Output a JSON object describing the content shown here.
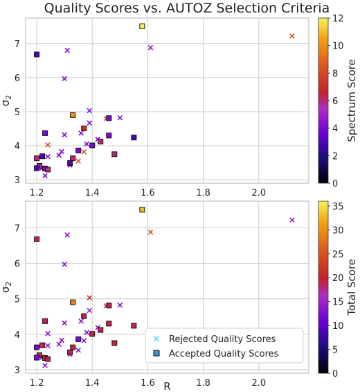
{
  "title": "Quality Scores vs. AUTOZ Selection Criteria",
  "xlabel": "R",
  "legend": {
    "rejected": "Rejected Quality Scores",
    "accepted": "Accepted Quality Scores"
  },
  "chart_data": [
    {
      "type": "scatter",
      "panel": "top",
      "title": "Quality Scores vs. AUTOZ Selection Criteria",
      "xlabel": "",
      "ylabel": "σ2",
      "xlim": [
        1.16,
        2.18
      ],
      "ylim": [
        2.9,
        7.75
      ],
      "xticks": [
        "1.2",
        "1.4",
        "1.6",
        "1.8",
        "2.0"
      ],
      "yticks": [
        "3",
        "4",
        "5",
        "6",
        "7"
      ],
      "grid": true,
      "colorbar": {
        "label": "Spectrum Score",
        "min": 0,
        "max": 12,
        "ticks": [
          "0",
          "2",
          "4",
          "6",
          "8",
          "10",
          "12"
        ]
      },
      "series": [
        {
          "name": "Rejected Quality Scores",
          "marker": "x",
          "points": [
            {
              "x": 2.12,
              "y": 7.22,
              "c": 8
            },
            {
              "x": 1.61,
              "y": 6.88,
              "c": 4
            },
            {
              "x": 1.31,
              "y": 6.8,
              "c": 4
            },
            {
              "x": 1.3,
              "y": 5.97,
              "c": 4
            },
            {
              "x": 1.39,
              "y": 5.03,
              "c": 4
            },
            {
              "x": 1.45,
              "y": 4.8,
              "c": 8
            },
            {
              "x": 1.5,
              "y": 4.82,
              "c": 4
            },
            {
              "x": 1.39,
              "y": 4.67,
              "c": 4
            },
            {
              "x": 1.3,
              "y": 4.32,
              "c": 4
            },
            {
              "x": 1.36,
              "y": 4.37,
              "c": 4
            },
            {
              "x": 1.42,
              "y": 4.19,
              "c": 4
            },
            {
              "x": 1.38,
              "y": 4.05,
              "c": 4
            },
            {
              "x": 1.24,
              "y": 4.02,
              "c": 8
            },
            {
              "x": 1.29,
              "y": 3.83,
              "c": 4
            },
            {
              "x": 1.37,
              "y": 3.82,
              "c": 8
            },
            {
              "x": 1.28,
              "y": 3.72,
              "c": 4
            },
            {
              "x": 1.24,
              "y": 3.68,
              "c": 4
            },
            {
              "x": 1.35,
              "y": 3.55,
              "c": 8
            },
            {
              "x": 1.32,
              "y": 3.43,
              "c": 4
            },
            {
              "x": 1.22,
              "y": 3.35,
              "c": 4
            },
            {
              "x": 1.23,
              "y": 3.12,
              "c": 4
            }
          ]
        },
        {
          "name": "Accepted Quality Scores",
          "marker": "square",
          "points": [
            {
              "x": 1.58,
              "y": 7.51,
              "c": 12
            },
            {
              "x": 1.2,
              "y": 6.68,
              "c": 3
            },
            {
              "x": 1.33,
              "y": 4.9,
              "c": 10
            },
            {
              "x": 1.46,
              "y": 4.81,
              "c": 4
            },
            {
              "x": 1.37,
              "y": 4.51,
              "c": 7
            },
            {
              "x": 1.23,
              "y": 4.37,
              "c": 4
            },
            {
              "x": 1.46,
              "y": 4.3,
              "c": 4
            },
            {
              "x": 1.55,
              "y": 4.24,
              "c": 3
            },
            {
              "x": 1.43,
              "y": 4.12,
              "c": 6
            },
            {
              "x": 1.4,
              "y": 4.01,
              "c": 4
            },
            {
              "x": 1.35,
              "y": 3.86,
              "c": 4
            },
            {
              "x": 1.48,
              "y": 3.75,
              "c": 6
            },
            {
              "x": 1.22,
              "y": 3.69,
              "c": 3
            },
            {
              "x": 1.2,
              "y": 3.63,
              "c": 6
            },
            {
              "x": 1.33,
              "y": 3.63,
              "c": 6
            },
            {
              "x": 1.32,
              "y": 3.49,
              "c": 3
            },
            {
              "x": 1.21,
              "y": 3.41,
              "c": 6
            },
            {
              "x": 1.2,
              "y": 3.34,
              "c": 3
            },
            {
              "x": 1.23,
              "y": 3.33,
              "c": 4
            },
            {
              "x": 1.24,
              "y": 3.3,
              "c": 6
            }
          ]
        }
      ]
    },
    {
      "type": "scatter",
      "panel": "bottom",
      "xlabel": "R",
      "ylabel": "σ2",
      "xlim": [
        1.16,
        2.18
      ],
      "ylim": [
        2.9,
        7.75
      ],
      "xticks": [
        "1.2",
        "1.4",
        "1.6",
        "1.8",
        "2.0"
      ],
      "yticks": [
        "3",
        "4",
        "5",
        "6",
        "7"
      ],
      "grid": true,
      "legend_position": "bottom-right",
      "colorbar": {
        "label": "Total Score",
        "min": 0,
        "max": 36,
        "ticks": [
          "0",
          "5",
          "10",
          "15",
          "20",
          "25",
          "30",
          "35"
        ]
      },
      "series": [
        {
          "name": "Rejected Quality Scores",
          "marker": "x",
          "points": [
            {
              "x": 2.12,
              "y": 7.22,
              "c": 14
            },
            {
              "x": 1.61,
              "y": 6.88,
              "c": 24
            },
            {
              "x": 1.31,
              "y": 6.8,
              "c": 13
            },
            {
              "x": 1.3,
              "y": 5.97,
              "c": 13
            },
            {
              "x": 1.39,
              "y": 5.03,
              "c": 21
            },
            {
              "x": 1.45,
              "y": 4.8,
              "c": 19
            },
            {
              "x": 1.5,
              "y": 4.82,
              "c": 13
            },
            {
              "x": 1.39,
              "y": 4.67,
              "c": 13
            },
            {
              "x": 1.3,
              "y": 4.32,
              "c": 13
            },
            {
              "x": 1.36,
              "y": 4.37,
              "c": 13
            },
            {
              "x": 1.42,
              "y": 4.19,
              "c": 13
            },
            {
              "x": 1.38,
              "y": 4.05,
              "c": 13
            },
            {
              "x": 1.24,
              "y": 4.02,
              "c": 13
            },
            {
              "x": 1.29,
              "y": 3.83,
              "c": 13
            },
            {
              "x": 1.37,
              "y": 3.82,
              "c": 13
            },
            {
              "x": 1.28,
              "y": 3.72,
              "c": 13
            },
            {
              "x": 1.24,
              "y": 3.68,
              "c": 13
            },
            {
              "x": 1.35,
              "y": 3.55,
              "c": 13
            },
            {
              "x": 1.32,
              "y": 3.43,
              "c": 13
            },
            {
              "x": 1.22,
              "y": 3.35,
              "c": 13
            },
            {
              "x": 1.23,
              "y": 3.12,
              "c": 13
            }
          ]
        },
        {
          "name": "Accepted Quality Scores",
          "marker": "square",
          "points": [
            {
              "x": 1.58,
              "y": 7.51,
              "c": 33
            },
            {
              "x": 1.2,
              "y": 6.68,
              "c": 19
            },
            {
              "x": 1.33,
              "y": 4.9,
              "c": 29
            },
            {
              "x": 1.46,
              "y": 4.81,
              "c": 19
            },
            {
              "x": 1.37,
              "y": 4.51,
              "c": 19
            },
            {
              "x": 1.23,
              "y": 4.37,
              "c": 19
            },
            {
              "x": 1.46,
              "y": 4.3,
              "c": 19
            },
            {
              "x": 1.55,
              "y": 4.24,
              "c": 19
            },
            {
              "x": 1.43,
              "y": 4.12,
              "c": 19
            },
            {
              "x": 1.4,
              "y": 4.01,
              "c": 19
            },
            {
              "x": 1.35,
              "y": 3.86,
              "c": 12
            },
            {
              "x": 1.48,
              "y": 3.75,
              "c": 20
            },
            {
              "x": 1.22,
              "y": 3.69,
              "c": 19
            },
            {
              "x": 1.2,
              "y": 3.63,
              "c": 12
            },
            {
              "x": 1.33,
              "y": 3.63,
              "c": 19
            },
            {
              "x": 1.32,
              "y": 3.49,
              "c": 19
            },
            {
              "x": 1.21,
              "y": 3.41,
              "c": 19
            },
            {
              "x": 1.2,
              "y": 3.34,
              "c": 12
            },
            {
              "x": 1.23,
              "y": 3.33,
              "c": 19
            },
            {
              "x": 1.24,
              "y": 3.3,
              "c": 19
            }
          ]
        }
      ]
    }
  ]
}
